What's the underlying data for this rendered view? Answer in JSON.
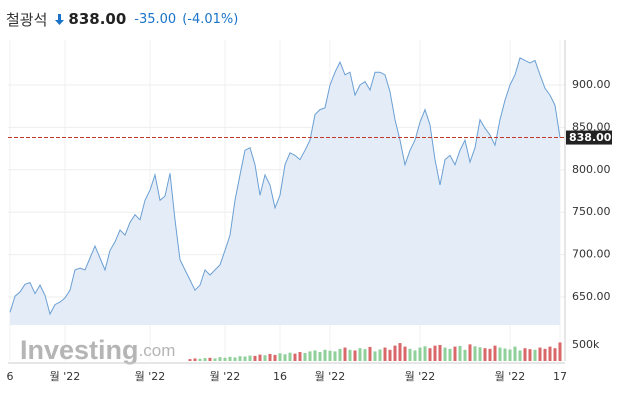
{
  "chart_data": {
    "type": "area",
    "title": "철광석",
    "change": "-35.00",
    "change_pct": "(-4.01%)",
    "current": {
      "value": 838,
      "label": "838.00"
    },
    "watermark": [
      "Investing",
      ".com"
    ],
    "color": "#6a9fd4",
    "fill": "#e4edf7",
    "line_color": "#c0392b",
    "xlim": [
      0,
      110
    ],
    "xticks": [
      {
        "value": 0,
        "label": "6"
      },
      {
        "value": 11,
        "label": "월 '22"
      },
      {
        "value": 28,
        "label": "월 '22"
      },
      {
        "value": 43,
        "label": "월 '22"
      },
      {
        "value": 54,
        "label": "16"
      },
      {
        "value": 64,
        "label": "월 '22"
      },
      {
        "value": 82,
        "label": "월 '22"
      },
      {
        "value": 100,
        "label": "월 '22"
      },
      {
        "value": 110,
        "label": "17"
      }
    ],
    "ylim": [
      617,
      953
    ],
    "yticks": [
      {
        "value": 650,
        "label": "650.00"
      },
      {
        "value": 700,
        "label": "700.00"
      },
      {
        "value": 750,
        "label": "750.00"
      },
      {
        "value": 800,
        "label": "800.00"
      },
      {
        "value": 850,
        "label": "850.00"
      },
      {
        "value": 900,
        "label": "900.00"
      }
    ],
    "grid": true,
    "values": [
      632,
      651,
      656,
      665,
      667,
      654,
      664,
      652,
      630,
      641,
      644,
      649,
      658,
      682,
      684,
      682,
      696,
      710,
      696,
      682,
      705,
      715,
      729,
      723,
      738,
      747,
      741,
      764,
      776,
      794,
      764,
      769,
      796,
      741,
      694,
      682,
      670,
      658,
      664,
      682,
      676,
      682,
      688,
      705,
      723,
      764,
      794,
      823,
      826,
      806,
      770,
      794,
      782,
      755,
      770,
      806,
      820,
      817,
      812,
      823,
      835,
      865,
      871,
      873,
      900,
      915,
      927,
      912,
      915,
      888,
      900,
      904,
      894,
      915,
      915,
      912,
      892,
      859,
      835,
      806,
      823,
      835,
      856,
      871,
      853,
      812,
      782,
      812,
      817,
      806,
      823,
      835,
      809,
      826,
      859,
      849,
      841,
      829,
      859,
      882,
      900,
      912,
      932,
      929,
      926,
      929,
      912,
      896,
      888,
      876,
      838
    ],
    "volume": {
      "start": 36,
      "ylim": [
        0,
        1062500
      ],
      "yticks": [
        {
          "value": 500000,
          "label": "500k"
        }
      ],
      "up_color": "#8fcf9a",
      "down_color": "#d9676a",
      "values": [
        60000,
        80000,
        70000,
        90000,
        100000,
        80000,
        120000,
        100000,
        130000,
        110000,
        150000,
        140000,
        170000,
        160000,
        200000,
        180000,
        220000,
        190000,
        240000,
        210000,
        260000,
        230000,
        280000,
        250000,
        300000,
        330000,
        280000,
        350000,
        320000,
        300000,
        380000,
        420000,
        350000,
        330000,
        400000,
        370000,
        440000,
        300000,
        360000,
        420000,
        350000,
        480000,
        560000,
        450000,
        380000,
        330000,
        420000,
        460000,
        400000,
        480000,
        500000,
        420000,
        380000,
        450000,
        470000,
        350000,
        520000,
        460000,
        430000,
        400000,
        380000,
        480000,
        420000,
        390000,
        360000,
        450000,
        330000,
        400000,
        370000,
        350000,
        420000,
        380000,
        450000,
        400000,
        580000
      ]
    }
  }
}
